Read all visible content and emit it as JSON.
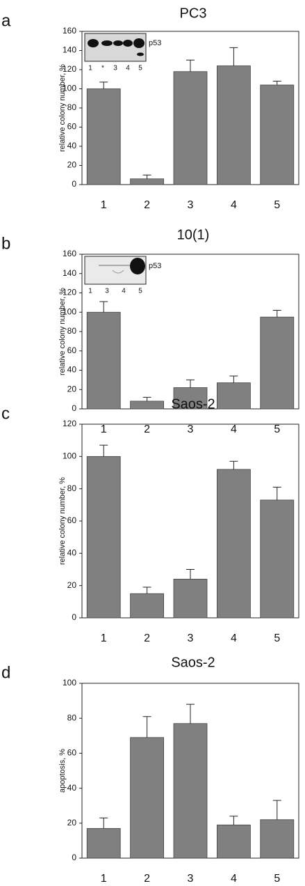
{
  "chart_data": [
    {
      "type": "bar",
      "panel": "a",
      "title": "PC3",
      "y_label": "relative colony number, %",
      "categories": [
        "1",
        "2",
        "3",
        "4",
        "5"
      ],
      "values": [
        100,
        6,
        118,
        124,
        104
      ],
      "errors": [
        7,
        4,
        12,
        19,
        4
      ],
      "color": "#808080",
      "ylim": [
        0,
        160
      ],
      "yticks": [
        0,
        20,
        40,
        60,
        80,
        100,
        120,
        140,
        160
      ],
      "inset": {
        "label": "p53",
        "lanes": [
          "1",
          "*",
          "3",
          "4",
          "5"
        ]
      }
    },
    {
      "type": "bar",
      "panel": "b",
      "title": "10(1)",
      "y_label": "relative colony number, %",
      "categories": [
        "1",
        "2",
        "3",
        "4",
        "5"
      ],
      "values": [
        100,
        8,
        22,
        27,
        95
      ],
      "errors": [
        11,
        4,
        8,
        7,
        7
      ],
      "color": "#808080",
      "ylim": [
        0,
        160
      ],
      "yticks": [
        0,
        20,
        40,
        60,
        80,
        100,
        120,
        140,
        160
      ],
      "inset": {
        "label": "p53",
        "lanes": [
          "1",
          "3",
          "4",
          "5"
        ]
      }
    },
    {
      "type": "bar",
      "panel": "c",
      "title": "Saos-2",
      "y_label": "relative colony number, %",
      "categories": [
        "1",
        "2",
        "3",
        "4",
        "5"
      ],
      "values": [
        100,
        15,
        24,
        92,
        73
      ],
      "errors": [
        7,
        4,
        6,
        5,
        8
      ],
      "color": "#808080",
      "ylim": [
        0,
        120
      ],
      "yticks": [
        0,
        20,
        40,
        60,
        80,
        100,
        120
      ]
    },
    {
      "type": "bar",
      "panel": "d",
      "title": "Saos-2",
      "y_label": "apoptosis, %",
      "categories": [
        "1",
        "2",
        "3",
        "4",
        "5"
      ],
      "values": [
        17,
        69,
        77,
        19,
        22
      ],
      "errors": [
        6,
        12,
        11,
        5,
        11
      ],
      "color": "#808080",
      "ylim": [
        0,
        100
      ],
      "yticks": [
        0,
        20,
        40,
        60,
        80,
        100
      ]
    }
  ]
}
